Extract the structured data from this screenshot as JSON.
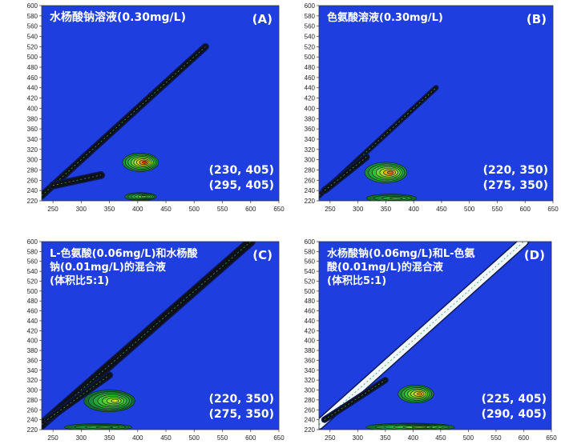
{
  "chart_data": [
    {
      "type": "contour",
      "panel_id": "(A)",
      "title_lines": [
        "水杨酸钠溶液(0.30mg/L)"
      ],
      "x": {
        "min": 230,
        "max": 650,
        "ticks": [
          250,
          300,
          350,
          400,
          450,
          500,
          550,
          600,
          650
        ]
      },
      "y": {
        "min": 220,
        "max": 600,
        "ticks": [
          220,
          240,
          260,
          280,
          300,
          320,
          340,
          360,
          380,
          400,
          420,
          440,
          460,
          480,
          500,
          520,
          540,
          560,
          580,
          600
        ]
      },
      "annotations": [
        "(230, 405)",
        "(295, 405)"
      ],
      "peaks": [
        {
          "ex": 405,
          "em": 295,
          "rx": 32,
          "ry": 18,
          "levels": 8,
          "core": "red"
        },
        {
          "ex": 405,
          "em": 228,
          "rx": 28,
          "ry": 8,
          "levels": 6,
          "core": "green"
        }
      ],
      "scatter_lines": [
        {
          "x0": 230,
          "y0": 230,
          "x1": 520,
          "y1": 520,
          "width": 6
        },
        {
          "x0": 250,
          "y0": 250,
          "x1": 335,
          "y1": 270,
          "width": 7
        }
      ]
    },
    {
      "type": "contour",
      "panel_id": "(B)",
      "title_lines": [
        "色氨酸溶液(0.30mg/L)"
      ],
      "x": {
        "min": 230,
        "max": 650,
        "ticks": [
          250,
          300,
          350,
          400,
          450,
          500,
          550,
          600,
          650
        ]
      },
      "y": {
        "min": 220,
        "max": 600,
        "ticks": [
          220,
          240,
          260,
          280,
          300,
          320,
          340,
          360,
          380,
          400,
          420,
          440,
          460,
          480,
          500,
          520,
          540,
          560,
          580,
          600
        ]
      },
      "annotations": [
        "(220, 350)",
        "(275, 350)"
      ],
      "peaks": [
        {
          "ex": 350,
          "em": 275,
          "rx": 38,
          "ry": 20,
          "levels": 7,
          "core": "orange"
        },
        {
          "ex": 360,
          "em": 225,
          "rx": 45,
          "ry": 8,
          "levels": 4,
          "core": "darkgreen"
        }
      ],
      "scatter_lines": [
        {
          "x0": 230,
          "y0": 230,
          "x1": 440,
          "y1": 440,
          "width": 4
        },
        {
          "x0": 240,
          "y0": 240,
          "x1": 315,
          "y1": 305,
          "width": 6
        }
      ]
    },
    {
      "type": "contour",
      "panel_id": "(C)",
      "title_lines": [
        "L-色氨酸(0.06mg/L)和水杨酸",
        "钠(0.01mg/L)的混合液",
        "(体积比5:1)"
      ],
      "x": {
        "min": 230,
        "max": 650,
        "ticks": [
          250,
          300,
          350,
          400,
          450,
          500,
          550,
          600,
          650
        ]
      },
      "y": {
        "min": 220,
        "max": 600,
        "ticks": [
          220,
          240,
          260,
          280,
          300,
          320,
          340,
          360,
          380,
          400,
          420,
          440,
          460,
          480,
          500,
          520,
          540,
          560,
          580,
          600
        ]
      },
      "annotations": [
        "(220, 350)",
        "(275, 350)"
      ],
      "peaks": [
        {
          "ex": 350,
          "em": 278,
          "rx": 45,
          "ry": 22,
          "levels": 7,
          "core": "green"
        },
        {
          "ex": 330,
          "em": 225,
          "rx": 60,
          "ry": 7,
          "levels": 4,
          "core": "darkgreen"
        }
      ],
      "scatter_lines": [
        {
          "x0": 230,
          "y0": 230,
          "x1": 600,
          "y1": 600,
          "width": 9
        },
        {
          "x0": 240,
          "y0": 240,
          "x1": 350,
          "y1": 330,
          "width": 6
        }
      ]
    },
    {
      "type": "contour",
      "panel_id": "(D)",
      "title_lines": [
        "水杨酸钠(0.06mg/L)和L-色氨",
        "酸(0.01mg/L)的混合液",
        "(体积比5:1)"
      ],
      "x": {
        "min": 230,
        "max": 650,
        "ticks": [
          250,
          300,
          350,
          400,
          450,
          500,
          550,
          600,
          650
        ]
      },
      "y": {
        "min": 220,
        "max": 600,
        "ticks": [
          220,
          240,
          260,
          280,
          300,
          320,
          340,
          360,
          380,
          400,
          420,
          440,
          460,
          480,
          500,
          520,
          540,
          560,
          580,
          600
        ]
      },
      "annotations": [
        "(225, 405)",
        "(290, 405)"
      ],
      "peaks": [
        {
          "ex": 405,
          "em": 292,
          "rx": 32,
          "ry": 18,
          "levels": 7,
          "core": "red"
        },
        {
          "ex": 395,
          "em": 225,
          "rx": 80,
          "ry": 8,
          "levels": 6,
          "core": "green"
        }
      ],
      "scatter_lines": [
        {
          "x0": 230,
          "y0": 230,
          "x1": 600,
          "y1": 600,
          "width": 10,
          "white": true
        },
        {
          "x0": 240,
          "y0": 240,
          "x1": 350,
          "y1": 320,
          "width": 5
        }
      ]
    }
  ]
}
